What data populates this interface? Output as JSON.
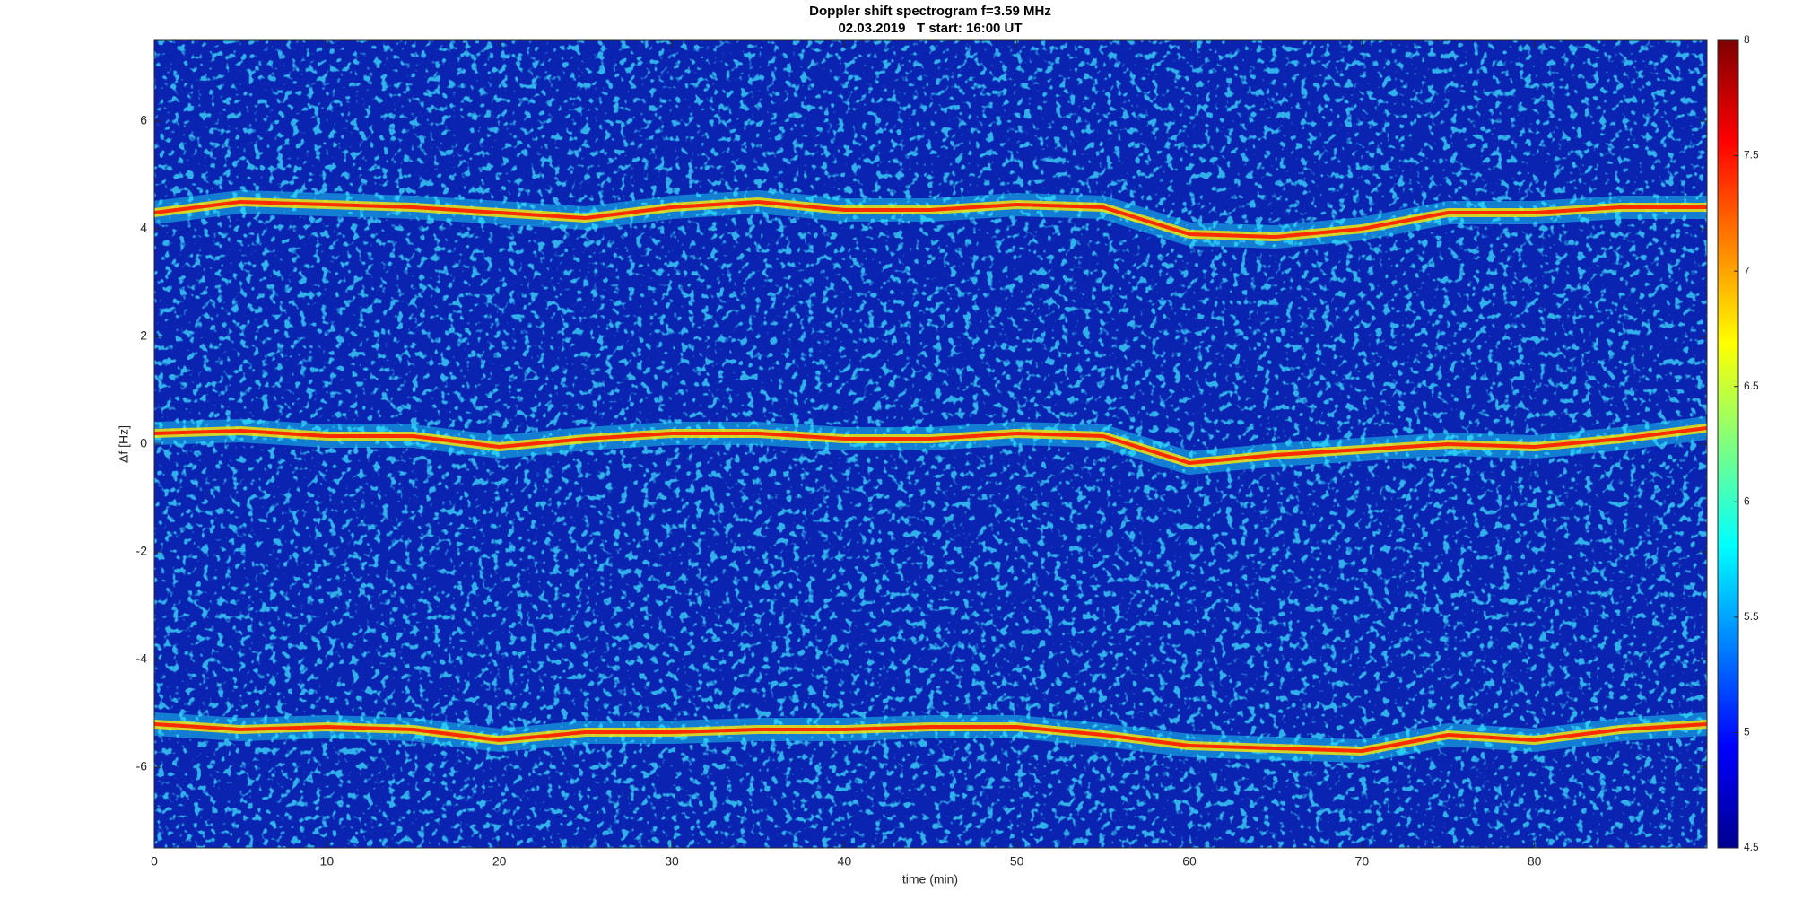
{
  "chart_data": {
    "type": "spectrogram",
    "title": "Doppler shift spectrogram f=3.59 MHz",
    "subtitle": "02.03.2019   T start: 16:00 UT",
    "x_label": "time (min)",
    "y_label": "Δf [Hz]",
    "x": [
      0,
      5,
      10,
      15,
      20,
      25,
      30,
      35,
      40,
      45,
      50,
      55,
      60,
      65,
      70,
      75,
      80,
      85,
      90
    ],
    "series": [
      {
        "color": "#ff2a00",
        "values": [
          4.3,
          4.5,
          4.45,
          4.4,
          4.3,
          4.2,
          4.4,
          4.5,
          4.35,
          4.35,
          4.45,
          4.4,
          3.9,
          3.85,
          4.0,
          4.3,
          4.3,
          4.4,
          4.4
        ]
      },
      {
        "color": "#ff2a00",
        "values": [
          0.2,
          0.25,
          0.15,
          0.15,
          -0.05,
          0.1,
          0.2,
          0.2,
          0.1,
          0.1,
          0.2,
          0.15,
          -0.35,
          -0.2,
          -0.1,
          0.0,
          -0.05,
          0.1,
          0.3
        ]
      },
      {
        "color": "#ff2a00",
        "values": [
          -5.2,
          -5.3,
          -5.25,
          -5.3,
          -5.5,
          -5.35,
          -5.35,
          -5.3,
          -5.3,
          -5.25,
          -5.25,
          -5.4,
          -5.6,
          -5.65,
          -5.7,
          -5.4,
          -5.5,
          -5.3,
          -5.2
        ]
      }
    ],
    "xlim": [
      0,
      90
    ],
    "xticks": [
      0,
      10,
      20,
      30,
      40,
      50,
      60,
      70,
      80
    ],
    "ylim": [
      -7.5,
      7.5
    ],
    "yticks": [
      -6,
      -4,
      -2,
      0,
      2,
      4,
      6
    ],
    "clim": [
      4.5,
      8
    ],
    "cticks": [
      4.5,
      5,
      5.5,
      6,
      6.5,
      7,
      7.5,
      8
    ]
  }
}
